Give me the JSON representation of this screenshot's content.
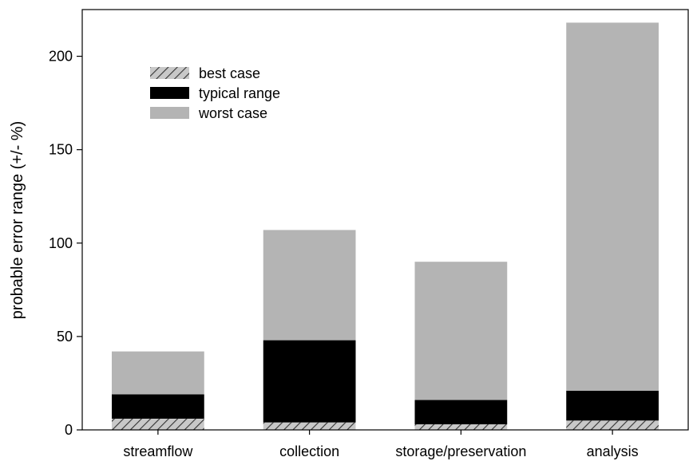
{
  "chart_data": {
    "type": "bar",
    "stacked": true,
    "categories": [
      "streamflow",
      "collection",
      "storage/preservation",
      "analysis"
    ],
    "series": [
      {
        "name": "best case",
        "values": [
          6,
          4,
          3,
          5
        ],
        "color": "#bbbbbb",
        "pattern": "diagonal-hatch"
      },
      {
        "name": "typical range",
        "values": [
          13,
          44,
          13,
          16
        ],
        "color": "#000000"
      },
      {
        "name": "worst case",
        "values": [
          23,
          59,
          74,
          197
        ],
        "color": "#b4b4b4"
      }
    ],
    "xlabel": "",
    "ylabel": "probable error range (+/- %)",
    "ylim": [
      0,
      225
    ],
    "yticks": [
      0,
      50,
      100,
      150,
      200
    ],
    "grid": false,
    "legend_position": "top-left"
  }
}
